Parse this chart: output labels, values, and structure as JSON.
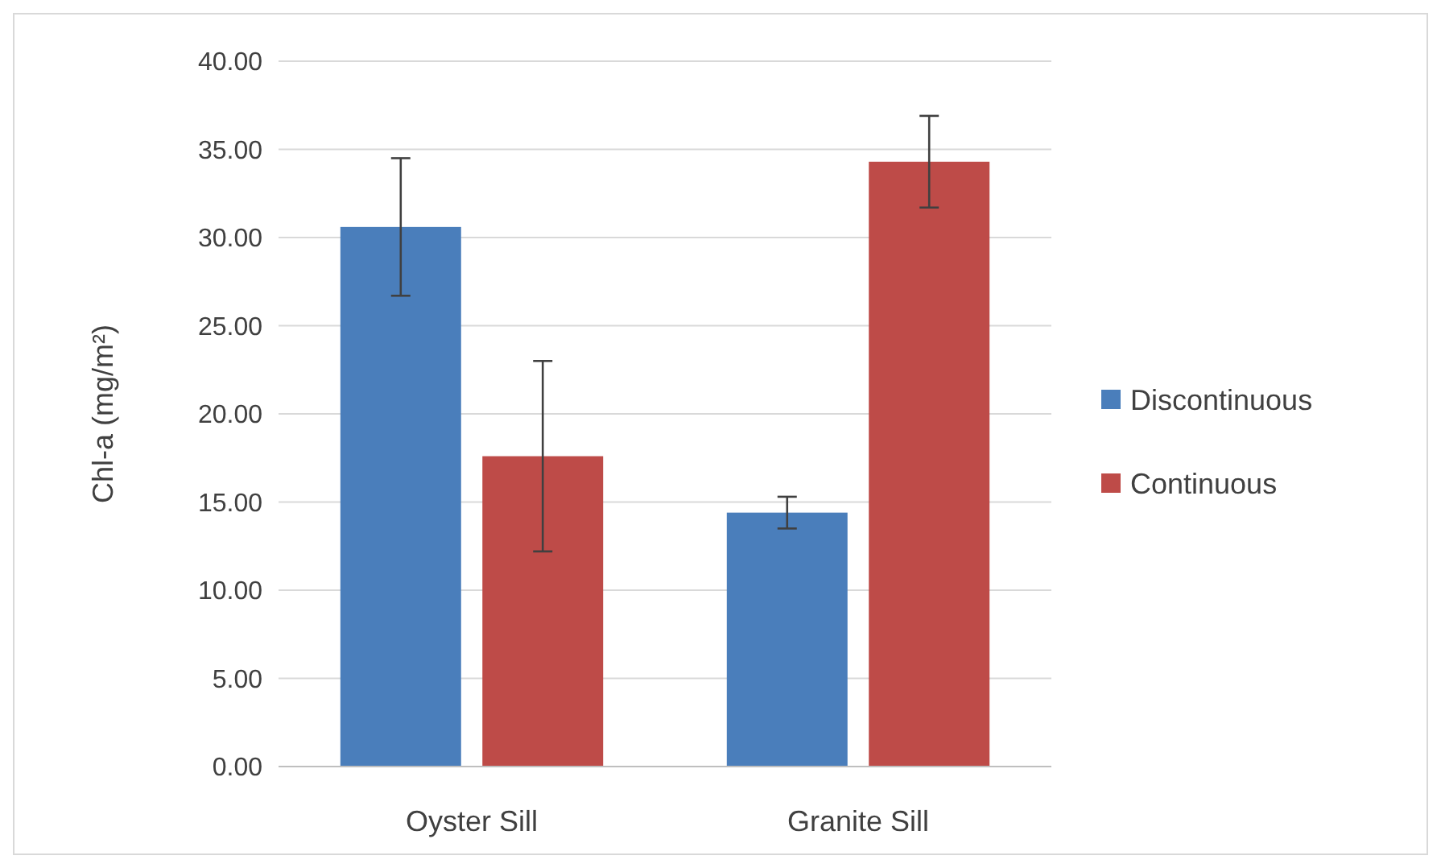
{
  "chart_data": {
    "type": "bar",
    "ylabel": "Chl-a (mg/m²)",
    "categories": [
      "Oyster Sill",
      "Granite Sill"
    ],
    "series": [
      {
        "name": "Discontinuous",
        "color": "#4a7ebb",
        "values": [
          30.6,
          14.4
        ],
        "errors": [
          3.9,
          0.9
        ]
      },
      {
        "name": "Continuous",
        "color": "#be4b48",
        "values": [
          17.6,
          34.3
        ],
        "errors": [
          5.4,
          2.6
        ]
      }
    ],
    "ylim": [
      0,
      40
    ],
    "yticks": [
      {
        "value": 0,
        "label": "0.00"
      },
      {
        "value": 5,
        "label": "5.00"
      },
      {
        "value": 10,
        "label": "10.00"
      },
      {
        "value": 15,
        "label": "15.00"
      },
      {
        "value": 20,
        "label": "20.00"
      },
      {
        "value": 25,
        "label": "25.00"
      },
      {
        "value": 30,
        "label": "30.00"
      },
      {
        "value": 35,
        "label": "35.00"
      },
      {
        "value": 40,
        "label": "40.00"
      }
    ],
    "grid": "y",
    "legend": "right"
  }
}
